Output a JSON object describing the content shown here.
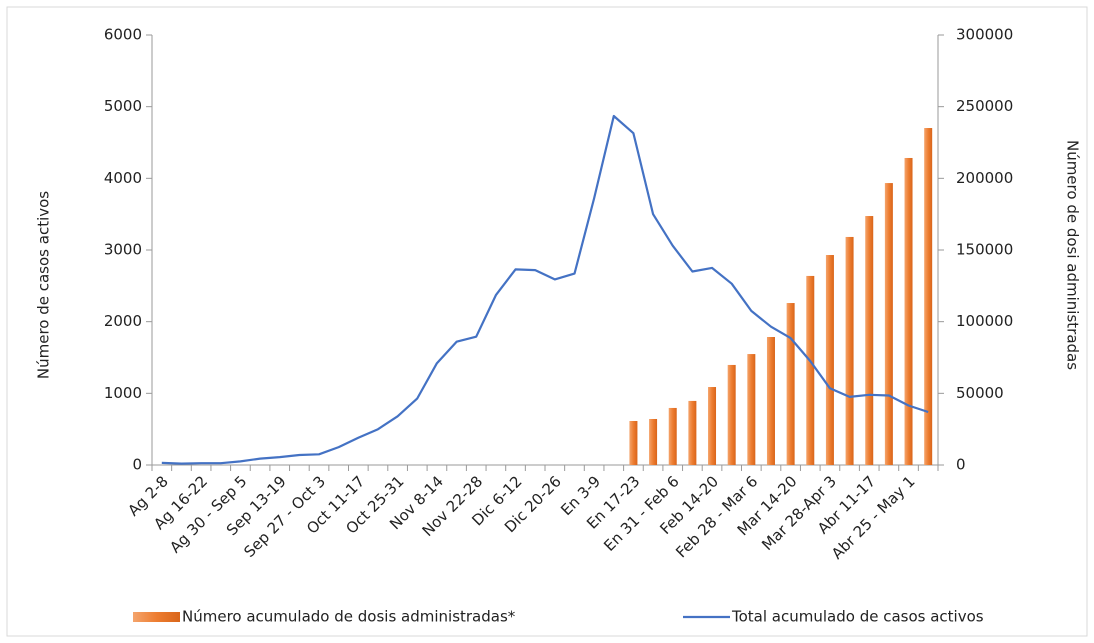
{
  "chart_data": {
    "type": "combo",
    "y_label": "Número de casos activos",
    "y2_label": "Número de dosi administradas",
    "categories": [
      "Ag 2-8",
      null,
      "Ag 16-22",
      null,
      "Ag 30 - Sep 5",
      null,
      "Sep 13-19",
      null,
      "Sep 27 - Oct 3",
      null,
      "Oct 11-17",
      null,
      "Oct 25-31",
      null,
      "Nov 8-14",
      null,
      "Nov 22-28",
      null,
      "Dic 6-12",
      null,
      "Dic 20-26",
      null,
      "En 3-9",
      null,
      "En 17-23",
      null,
      "En 31 - Feb 6",
      null,
      "Feb 14-20",
      null,
      "Feb 28 - Mar 6",
      null,
      "Mar 14-20",
      null,
      "Mar 28-Apr 3",
      null,
      "Abr 11-17",
      null,
      "Abr 25 - May 1",
      null
    ],
    "series": [
      {
        "name": "Número acumulado de dosis administradas*",
        "type": "bar",
        "axis": "y2",
        "color": "#ed7d31",
        "values": [
          null,
          null,
          null,
          null,
          null,
          null,
          null,
          null,
          null,
          null,
          null,
          null,
          null,
          null,
          null,
          null,
          null,
          null,
          null,
          null,
          null,
          null,
          null,
          null,
          30700,
          32100,
          39800,
          44700,
          54400,
          69800,
          77400,
          89300,
          113000,
          131900,
          146500,
          159100,
          173700,
          196700,
          214200,
          235100
        ]
      },
      {
        "name": "Total acumulado de casos activos",
        "type": "line",
        "axis": "y",
        "color": "#4472c4",
        "values": [
          30,
          20,
          25,
          25,
          50,
          90,
          110,
          140,
          150,
          250,
          380,
          500,
          680,
          930,
          1420,
          1720,
          1790,
          2370,
          2730,
          2720,
          2590,
          2670,
          3720,
          4870,
          4630,
          3500,
          3060,
          2700,
          2750,
          2530,
          2150,
          1930,
          1770,
          1450,
          1070,
          950,
          980,
          970,
          830,
          740
        ]
      }
    ],
    "ylim": [
      0,
      6000
    ],
    "yticks": [
      0,
      1000,
      2000,
      3000,
      4000,
      5000,
      6000
    ],
    "y2lim": [
      0,
      300000
    ],
    "y2ticks": [
      0,
      50000,
      100000,
      150000,
      200000,
      250000,
      300000
    ],
    "legend": "bottom"
  }
}
